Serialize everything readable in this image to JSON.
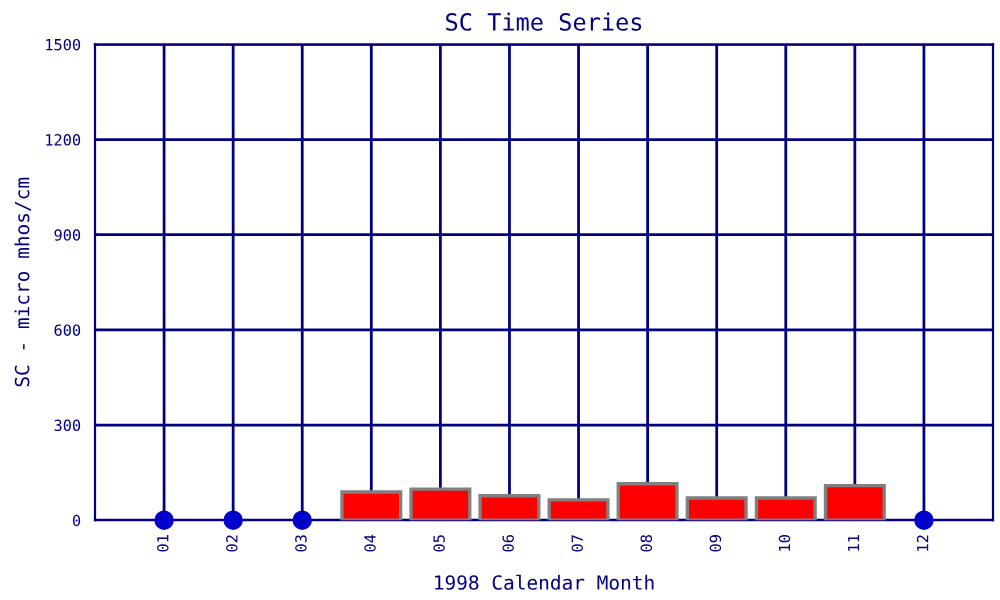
{
  "chart_data": {
    "type": "bar",
    "title": "SC Time Series",
    "xlabel": "1998 Calendar Month",
    "ylabel": "SC - micro mhos/cm",
    "categories": [
      "01",
      "02",
      "03",
      "04",
      "05",
      "06",
      "07",
      "08",
      "09",
      "10",
      "11",
      "12"
    ],
    "series": [
      {
        "color": "#ff0000",
        "values": [
          null,
          null,
          null,
          89,
          98,
          77,
          64,
          115,
          70,
          70,
          109,
          null
        ]
      },
      {
        "type": "scatter",
        "color": "#0000cc",
        "marker": "circle",
        "values": [
          0,
          0,
          0,
          null,
          null,
          null,
          null,
          null,
          null,
          null,
          null,
          0
        ]
      }
    ],
    "ylim": [
      0,
      1500
    ],
    "yticks": [
      0,
      300,
      600,
      900,
      1200,
      1500
    ],
    "grid": true,
    "legend": false
  }
}
